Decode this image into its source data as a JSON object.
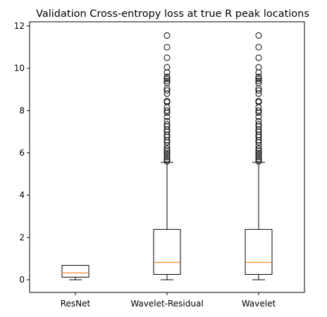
{
  "chart_data": {
    "type": "box",
    "title": "Validation Cross-entropy loss at true R peak locations",
    "xlabel": "",
    "ylabel": "",
    "ylim": [
      -0.6,
      12.2
    ],
    "yticks": [
      0,
      2,
      4,
      6,
      8,
      10,
      12
    ],
    "categories": [
      "ResNet",
      "Wavelet-Residual",
      "Wavelet"
    ],
    "series": [
      {
        "category": "ResNet",
        "whisker_low": 0.0,
        "q1": 0.12,
        "median": 0.32,
        "q3": 0.68,
        "whisker_high": 0.68,
        "outliers": []
      },
      {
        "category": "Wavelet-Residual",
        "whisker_low": 0.0,
        "q1": 0.25,
        "median": 0.82,
        "q3": 2.38,
        "whisker_high": 5.55,
        "outliers": [
          5.6,
          5.7,
          5.8,
          5.9,
          6.0,
          6.1,
          6.2,
          6.35,
          6.5,
          6.6,
          6.75,
          6.85,
          7.0,
          7.1,
          7.25,
          7.35,
          7.5,
          7.7,
          7.9,
          8.0,
          8.15,
          8.4,
          8.45,
          8.8,
          8.95,
          9.05,
          9.3,
          9.4,
          9.5,
          9.6,
          9.8,
          10.05,
          10.5,
          11.0,
          11.55
        ]
      },
      {
        "category": "Wavelet",
        "whisker_low": 0.0,
        "q1": 0.25,
        "median": 0.82,
        "q3": 2.38,
        "whisker_high": 5.55,
        "outliers": [
          5.6,
          5.7,
          5.8,
          5.9,
          6.0,
          6.1,
          6.2,
          6.35,
          6.5,
          6.6,
          6.75,
          6.85,
          7.0,
          7.1,
          7.25,
          7.35,
          7.5,
          7.7,
          7.9,
          8.0,
          8.15,
          8.4,
          8.45,
          8.8,
          8.95,
          9.05,
          9.3,
          9.4,
          9.5,
          9.6,
          9.8,
          10.05,
          10.5,
          11.0,
          11.55
        ]
      }
    ],
    "colors": {
      "box": "#000000",
      "median": "#ff7f0e",
      "outlier": "#000000"
    },
    "grid": false,
    "legend": "none"
  }
}
